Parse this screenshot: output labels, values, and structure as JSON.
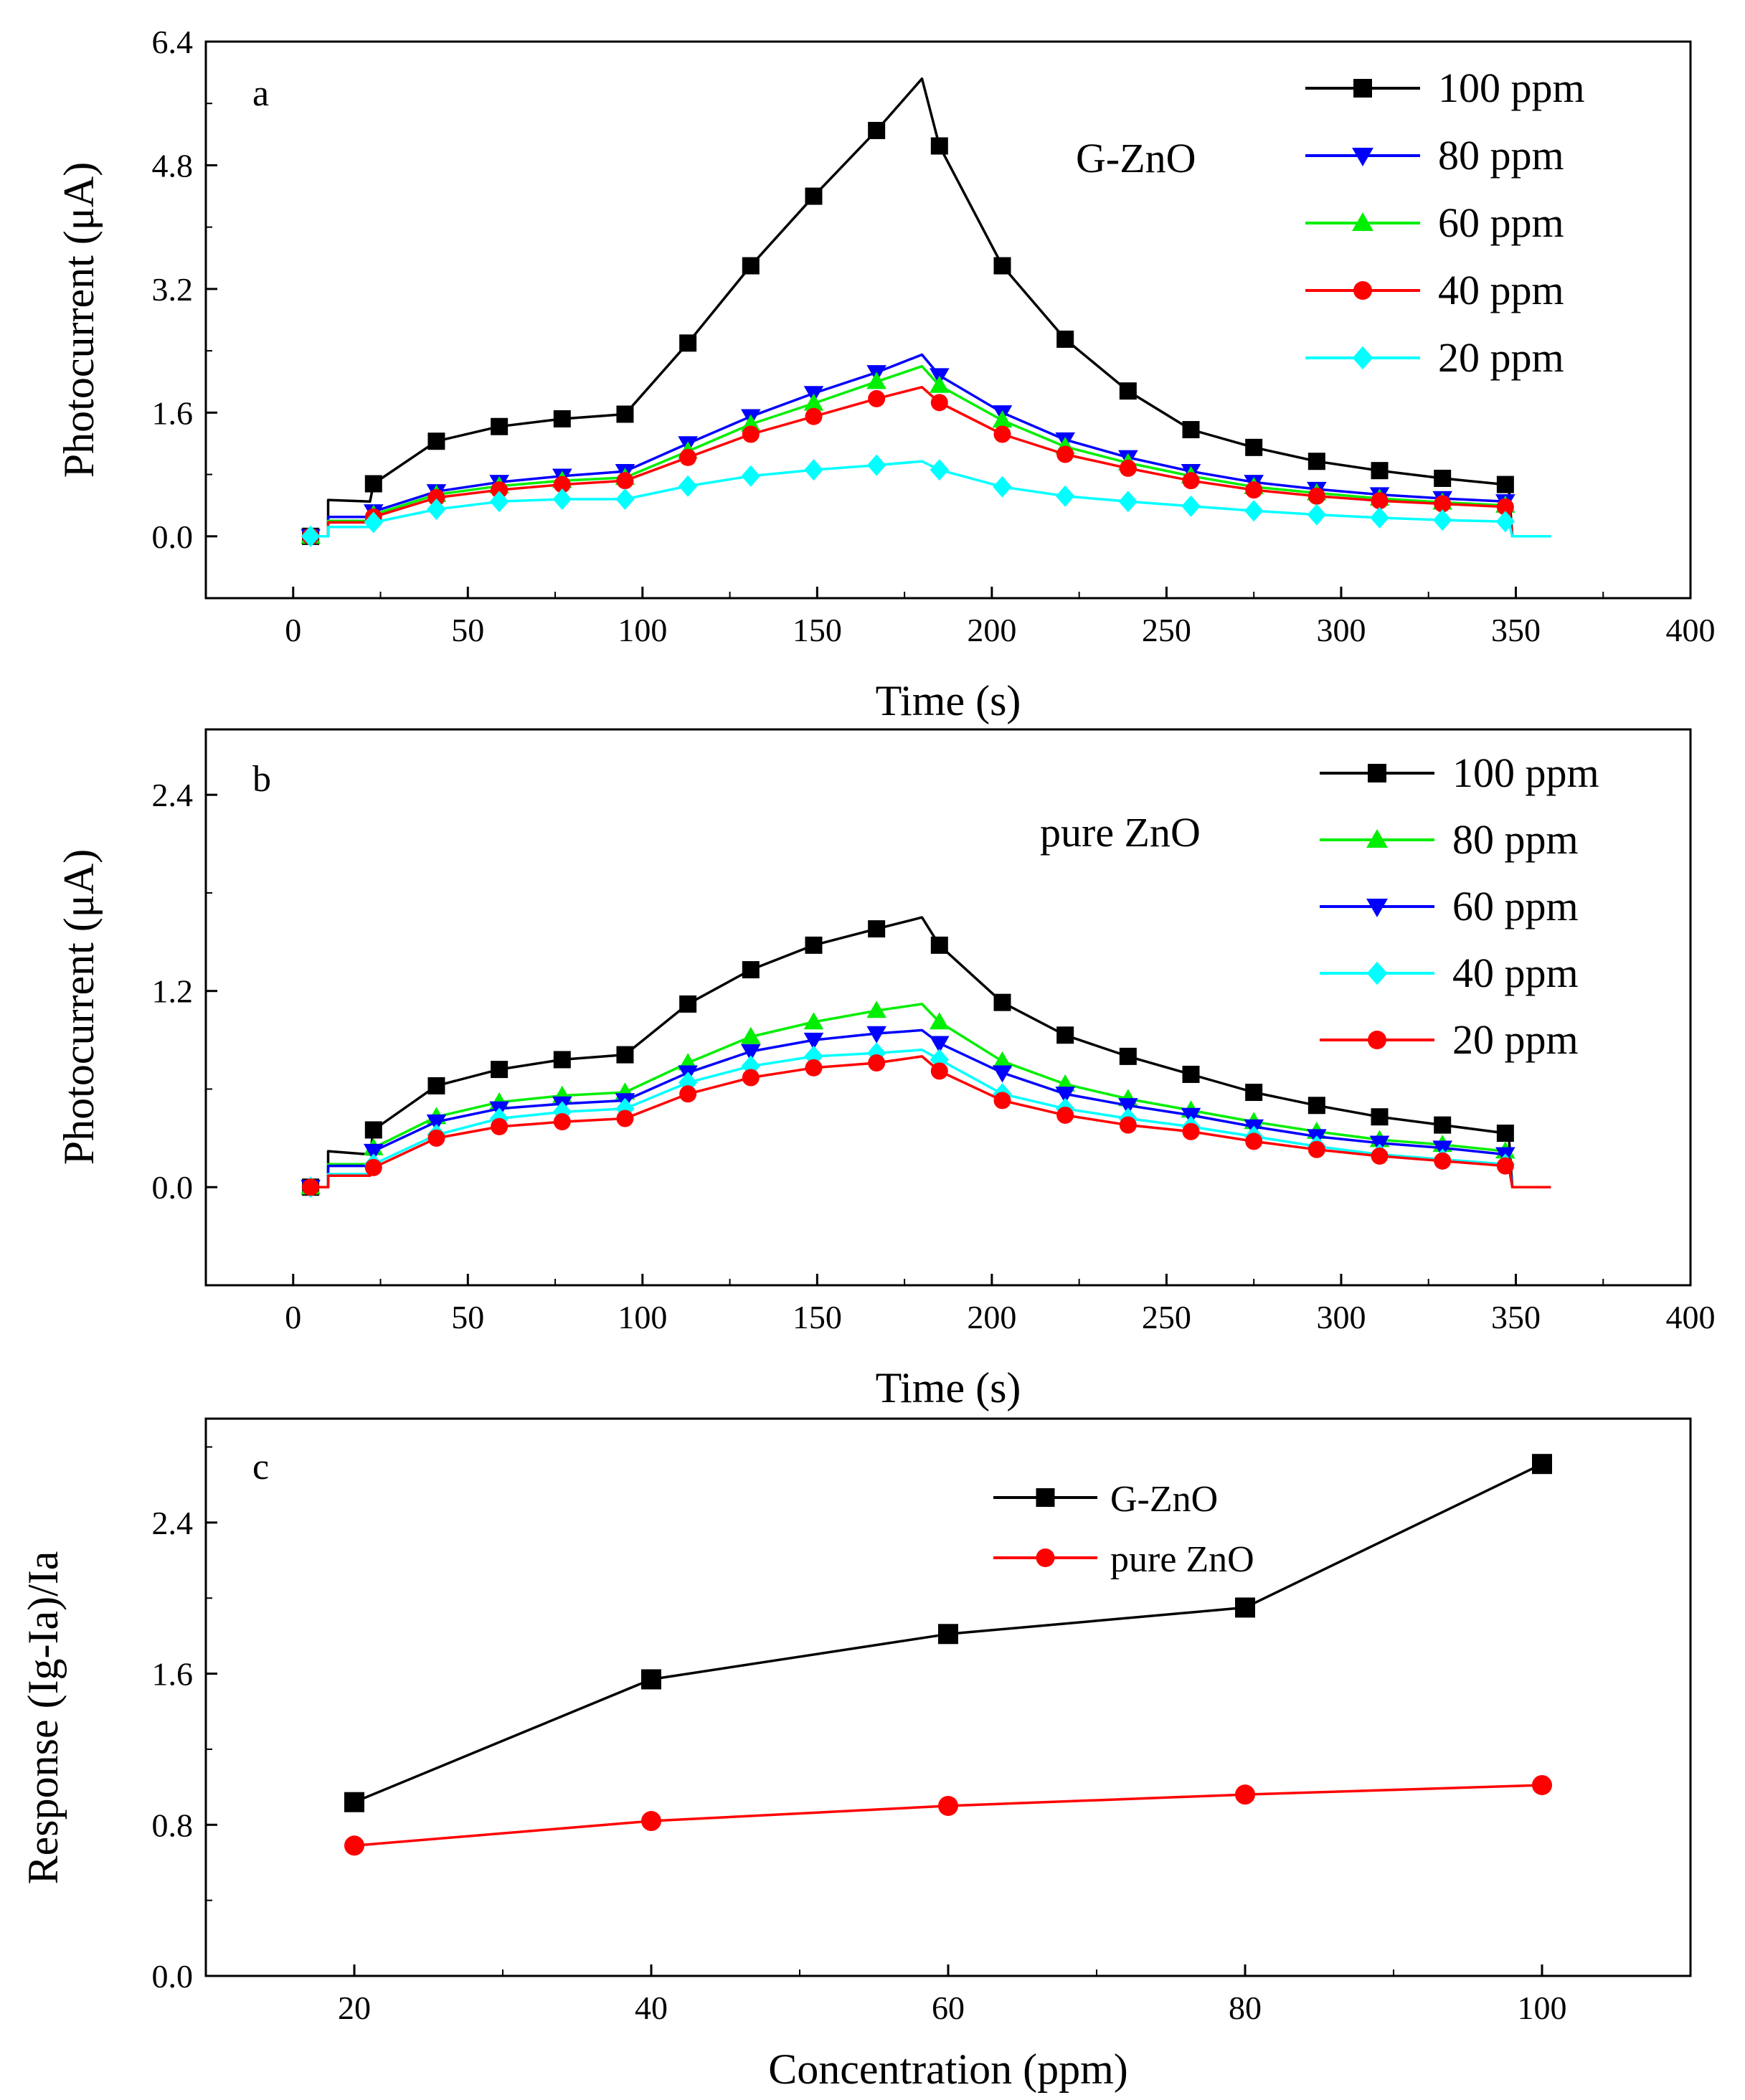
{
  "chart_data": [
    {
      "type": "line",
      "panel_label": "a",
      "annotation": "G-ZnO",
      "xlabel": "Time (s)",
      "ylabel": "Photocurrent (μA)",
      "xlim": [
        -25,
        400
      ],
      "ylim": [
        -0.8,
        6.4
      ],
      "xticks": [
        "0",
        "50",
        "100",
        "150",
        "200",
        "250",
        "300",
        "350",
        "400"
      ],
      "yticks": [
        "0.0",
        "1.6",
        "3.2",
        "4.8",
        "6.4"
      ],
      "legend_position": "top-right",
      "marker_x": [
        5,
        23,
        41,
        59,
        77,
        95,
        113,
        131,
        149,
        167,
        185,
        203,
        221,
        239,
        257,
        275,
        293,
        311,
        329,
        347
      ],
      "series": [
        {
          "name": "100 ppm",
          "color": "#000000",
          "marker": "square",
          "values": [
            0.0,
            0.68,
            1.23,
            1.42,
            1.52,
            1.58,
            2.5,
            3.5,
            4.4,
            5.25,
            5.05,
            3.5,
            2.55,
            1.88,
            1.38,
            1.15,
            0.97,
            0.85,
            0.75,
            0.67
          ],
          "peak": [
            180,
            5.92
          ],
          "step": [
            10,
            0.47,
            22,
            0.45
          ]
        },
        {
          "name": "80 ppm",
          "color": "#0000ff",
          "marker": "triangle-down",
          "values": [
            0.0,
            0.32,
            0.58,
            0.7,
            0.78,
            0.84,
            1.2,
            1.55,
            1.85,
            2.12,
            2.08,
            1.6,
            1.25,
            1.02,
            0.84,
            0.7,
            0.61,
            0.54,
            0.49,
            0.45
          ],
          "peak": [
            180,
            2.35
          ],
          "step": [
            10,
            0.25,
            22,
            0.25
          ]
        },
        {
          "name": "60 ppm",
          "color": "#00ee00",
          "marker": "triangle-up",
          "values": [
            0.0,
            0.28,
            0.54,
            0.65,
            0.72,
            0.76,
            1.1,
            1.45,
            1.72,
            2.0,
            1.95,
            1.5,
            1.16,
            0.95,
            0.78,
            0.64,
            0.56,
            0.49,
            0.44,
            0.4
          ],
          "peak": [
            180,
            2.2
          ],
          "step": [
            10,
            0.2,
            22,
            0.2
          ]
        },
        {
          "name": "40 ppm",
          "color": "#ff0000",
          "marker": "circle",
          "values": [
            0.0,
            0.25,
            0.5,
            0.6,
            0.67,
            0.72,
            1.02,
            1.32,
            1.55,
            1.78,
            1.73,
            1.32,
            1.06,
            0.88,
            0.72,
            0.6,
            0.52,
            0.46,
            0.42,
            0.38
          ],
          "peak": [
            180,
            1.93
          ],
          "step": [
            10,
            0.18,
            22,
            0.18
          ]
        },
        {
          "name": "20 ppm",
          "color": "#00ffff",
          "marker": "diamond",
          "values": [
            0.0,
            0.18,
            0.35,
            0.45,
            0.48,
            0.48,
            0.65,
            0.78,
            0.86,
            0.92,
            0.86,
            0.64,
            0.52,
            0.45,
            0.39,
            0.33,
            0.28,
            0.24,
            0.21,
            0.19
          ],
          "peak": [
            180,
            0.97
          ],
          "step": [
            10,
            0.12,
            22,
            0.12
          ]
        }
      ]
    },
    {
      "type": "line",
      "panel_label": "b",
      "annotation": "pure ZnO",
      "xlabel": "Time (s)",
      "ylabel": "Photocurrent (μA)",
      "xlim": [
        -25,
        400
      ],
      "ylim": [
        -0.6,
        2.8
      ],
      "xticks": [
        "0",
        "50",
        "100",
        "150",
        "200",
        "250",
        "300",
        "350",
        "400"
      ],
      "yticks": [
        "0.0",
        "1.2",
        "2.4"
      ],
      "legend_position": "top-right",
      "marker_x": [
        5,
        23,
        41,
        59,
        77,
        95,
        113,
        131,
        149,
        167,
        185,
        203,
        221,
        239,
        257,
        275,
        293,
        311,
        329,
        347
      ],
      "series": [
        {
          "name": "100 ppm",
          "color": "#000000",
          "marker": "square",
          "values": [
            0.0,
            0.35,
            0.62,
            0.72,
            0.78,
            0.81,
            1.12,
            1.33,
            1.48,
            1.58,
            1.48,
            1.13,
            0.93,
            0.8,
            0.69,
            0.58,
            0.5,
            0.43,
            0.38,
            0.33
          ],
          "peak": [
            180,
            1.65
          ],
          "step": [
            10,
            0.22,
            22,
            0.2
          ]
        },
        {
          "name": "80 ppm",
          "color": "#00ee00",
          "marker": "triangle-up",
          "values": [
            0.0,
            0.24,
            0.43,
            0.52,
            0.56,
            0.58,
            0.76,
            0.92,
            1.01,
            1.08,
            1.01,
            0.77,
            0.63,
            0.54,
            0.47,
            0.4,
            0.34,
            0.29,
            0.26,
            0.22
          ],
          "peak": [
            180,
            1.12
          ],
          "step": [
            10,
            0.14,
            22,
            0.14
          ]
        },
        {
          "name": "60 ppm",
          "color": "#0000ff",
          "marker": "triangle-down",
          "values": [
            0.0,
            0.22,
            0.4,
            0.48,
            0.51,
            0.53,
            0.7,
            0.83,
            0.9,
            0.94,
            0.88,
            0.7,
            0.57,
            0.5,
            0.44,
            0.37,
            0.31,
            0.27,
            0.24,
            0.2
          ],
          "peak": [
            180,
            0.96
          ],
          "step": [
            10,
            0.13,
            22,
            0.13
          ]
        },
        {
          "name": "40 ppm",
          "color": "#00ffff",
          "marker": "diamond",
          "values": [
            0.0,
            0.14,
            0.32,
            0.42,
            0.46,
            0.48,
            0.64,
            0.74,
            0.8,
            0.82,
            0.78,
            0.57,
            0.48,
            0.42,
            0.37,
            0.31,
            0.25,
            0.2,
            0.17,
            0.14
          ],
          "peak": [
            180,
            0.84
          ],
          "step": [
            10,
            0.08,
            22,
            0.08
          ]
        },
        {
          "name": "20 ppm",
          "color": "#ff0000",
          "marker": "circle",
          "values": [
            0.0,
            0.12,
            0.3,
            0.37,
            0.4,
            0.42,
            0.57,
            0.67,
            0.73,
            0.76,
            0.71,
            0.53,
            0.44,
            0.38,
            0.34,
            0.28,
            0.23,
            0.19,
            0.16,
            0.13
          ],
          "peak": [
            180,
            0.8
          ],
          "step": [
            10,
            0.07,
            22,
            0.07
          ]
        }
      ]
    },
    {
      "type": "line",
      "panel_label": "c",
      "xlabel": "Concentration (ppm)",
      "ylabel": "Response (Ig-Ia)/Ia",
      "xlim": [
        10,
        110
      ],
      "ylim": [
        0.0,
        2.95
      ],
      "xticks": [
        "20",
        "40",
        "60",
        "80",
        "100"
      ],
      "yticks": [
        "0.0",
        "0.8",
        "1.6",
        "2.4"
      ],
      "legend_position": "top-center",
      "x": [
        20,
        40,
        60,
        80,
        100
      ],
      "series": [
        {
          "name": "G-ZnO",
          "color": "#000000",
          "marker": "square",
          "values": [
            0.92,
            1.57,
            1.81,
            1.95,
            2.71
          ]
        },
        {
          "name": "pure ZnO",
          "color": "#ff0000",
          "marker": "circle",
          "values": [
            0.69,
            0.82,
            0.9,
            0.96,
            1.01
          ]
        }
      ]
    }
  ]
}
